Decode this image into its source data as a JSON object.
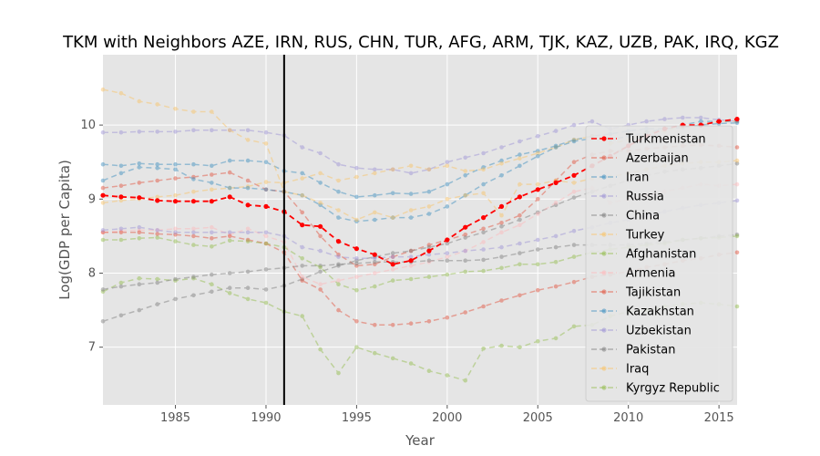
{
  "chart_data": {
    "type": "line",
    "title": "TKM with Neighbors AZE, IRN, RUS, CHN, TUR, AFG, ARM, TJK, KAZ, UZB, PAK, IRQ, KGZ",
    "xlabel": "Year",
    "ylabel": "Log(GDP per Capita)",
    "xlim": [
      1981,
      2016
    ],
    "ylim": [
      6.22,
      10.95
    ],
    "x_ticks": [
      "1985",
      "1990",
      "1995",
      "2000",
      "2005",
      "2010",
      "2015"
    ],
    "y_ticks": [
      "7",
      "8",
      "9",
      "10"
    ],
    "grid": true,
    "legend_position": "lower-right",
    "vline_x": 1991,
    "x": [
      1981,
      1982,
      1983,
      1984,
      1985,
      1986,
      1987,
      1988,
      1989,
      1990,
      1991,
      1992,
      1993,
      1994,
      1995,
      1996,
      1997,
      1998,
      1999,
      2000,
      2001,
      2002,
      2003,
      2004,
      2005,
      2006,
      2007,
      2008,
      2009,
      2010,
      2011,
      2012,
      2013,
      2014,
      2015,
      2016
    ],
    "series": [
      {
        "name": "Turkmenistan",
        "color": "#ff0000",
        "highlight": true,
        "values": [
          9.05,
          9.03,
          9.02,
          8.98,
          8.97,
          8.97,
          8.97,
          9.03,
          8.92,
          8.9,
          8.83,
          8.65,
          8.63,
          8.43,
          8.33,
          8.25,
          8.12,
          8.17,
          8.3,
          8.45,
          8.62,
          8.75,
          8.9,
          9.03,
          9.13,
          9.22,
          9.32,
          9.45,
          9.58,
          9.72,
          9.85,
          9.95,
          10.0,
          10.0,
          10.05,
          10.08
        ]
      },
      {
        "name": "Azerbaijan",
        "color": "#e24a33",
        "values": [
          9.15,
          9.18,
          9.22,
          9.25,
          9.28,
          9.3,
          9.33,
          9.36,
          9.25,
          9.13,
          9.1,
          8.82,
          8.5,
          8.25,
          8.1,
          8.12,
          8.22,
          8.3,
          8.38,
          8.45,
          8.52,
          8.6,
          8.68,
          8.78,
          9.0,
          9.25,
          9.5,
          9.6,
          9.65,
          9.65,
          9.68,
          9.7,
          9.72,
          9.73,
          9.72,
          9.7
        ]
      },
      {
        "name": "Iran",
        "color": "#348abd",
        "values": [
          9.47,
          9.45,
          9.48,
          9.47,
          9.47,
          9.47,
          9.45,
          9.52,
          9.52,
          9.5,
          9.38,
          9.35,
          9.22,
          9.1,
          9.03,
          9.05,
          9.08,
          9.07,
          9.1,
          9.2,
          9.32,
          9.43,
          9.52,
          9.6,
          9.65,
          9.72,
          9.8,
          9.85,
          9.88,
          9.92,
          9.95,
          9.95,
          9.97,
          10.0,
          10.02,
          10.03
        ]
      },
      {
        "name": "Russia",
        "color": "#988ed5",
        "values": [
          9.9,
          9.9,
          9.91,
          9.91,
          9.91,
          9.93,
          9.93,
          9.93,
          9.93,
          9.9,
          9.86,
          9.7,
          9.62,
          9.47,
          9.42,
          9.4,
          9.4,
          9.35,
          9.4,
          9.5,
          9.56,
          9.62,
          9.7,
          9.78,
          9.85,
          9.92,
          10.0,
          10.05,
          9.95,
          10.0,
          10.05,
          10.08,
          10.1,
          10.1,
          10.07,
          10.05
        ]
      },
      {
        "name": "China",
        "color": "#777777",
        "values": [
          7.35,
          7.43,
          7.5,
          7.58,
          7.65,
          7.7,
          7.75,
          7.8,
          7.8,
          7.78,
          7.83,
          7.92,
          8.02,
          8.1,
          8.17,
          8.22,
          8.27,
          8.3,
          8.35,
          8.4,
          8.48,
          8.55,
          8.63,
          8.72,
          8.82,
          8.92,
          9.02,
          9.1,
          9.18,
          9.25,
          9.32,
          9.37,
          9.4,
          9.42,
          9.45,
          9.48
        ]
      },
      {
        "name": "Turkey",
        "color": "#fbc15e",
        "values": [
          8.95,
          8.98,
          9.0,
          9.03,
          9.05,
          9.1,
          9.13,
          9.15,
          9.17,
          9.23,
          9.22,
          9.28,
          9.35,
          9.25,
          9.3,
          9.35,
          9.4,
          9.45,
          9.4,
          9.45,
          9.38,
          9.4,
          9.48,
          9.55,
          9.62,
          9.7,
          9.8,
          9.85,
          9.75,
          9.8,
          9.9,
          9.92,
          9.98,
          10.0,
          10.05,
          10.05
        ]
      },
      {
        "name": "Afghanistan",
        "color": "#8eba42",
        "values": [
          7.75,
          7.87,
          7.93,
          7.92,
          7.9,
          7.93,
          7.85,
          7.73,
          7.65,
          7.6,
          7.48,
          7.42,
          6.97,
          6.65,
          7.0,
          6.92,
          6.85,
          6.78,
          6.68,
          6.62,
          6.55,
          6.98,
          7.02,
          7.0,
          7.08,
          7.12,
          7.28,
          7.3,
          7.42,
          7.48,
          7.5,
          7.55,
          7.58,
          7.6,
          7.58,
          7.55
        ]
      },
      {
        "name": "Armenia",
        "color": "#ffb5b8",
        "values": [
          8.55,
          8.57,
          8.58,
          8.58,
          8.6,
          8.6,
          8.62,
          8.52,
          8.6,
          8.5,
          8.42,
          7.95,
          7.85,
          7.9,
          7.95,
          8.0,
          8.05,
          8.1,
          8.15,
          8.22,
          8.3,
          8.42,
          8.55,
          8.65,
          8.8,
          8.95,
          9.1,
          9.15,
          8.95,
          9.0,
          9.05,
          9.1,
          9.15,
          9.2,
          9.18,
          9.2
        ]
      },
      {
        "name": "Tajikistan",
        "color": "#e24a33",
        "values": [
          8.55,
          8.55,
          8.55,
          8.53,
          8.52,
          8.5,
          8.47,
          8.5,
          8.45,
          8.4,
          8.28,
          7.9,
          7.78,
          7.5,
          7.35,
          7.3,
          7.3,
          7.32,
          7.35,
          7.4,
          7.47,
          7.55,
          7.63,
          7.7,
          7.77,
          7.82,
          7.88,
          7.95,
          7.98,
          8.02,
          8.08,
          8.12,
          8.17,
          8.2,
          8.25,
          8.28
        ]
      },
      {
        "name": "Kazakhstan",
        "color": "#348abd",
        "values": [
          9.25,
          9.35,
          9.43,
          9.42,
          9.4,
          9.27,
          9.22,
          9.15,
          9.15,
          9.13,
          9.1,
          9.05,
          8.92,
          8.75,
          8.7,
          8.72,
          8.75,
          8.75,
          8.8,
          8.9,
          9.05,
          9.2,
          9.32,
          9.45,
          9.58,
          9.7,
          9.78,
          9.82,
          9.8,
          9.85,
          9.9,
          9.95,
          10.0,
          10.05,
          10.05,
          10.05
        ]
      },
      {
        "name": "Uzbekistan",
        "color": "#988ed5",
        "values": [
          8.58,
          8.6,
          8.62,
          8.58,
          8.55,
          8.55,
          8.55,
          8.55,
          8.55,
          8.55,
          8.5,
          8.35,
          8.3,
          8.22,
          8.2,
          8.2,
          8.22,
          8.22,
          8.25,
          8.27,
          8.3,
          8.32,
          8.35,
          8.4,
          8.45,
          8.5,
          8.57,
          8.62,
          8.68,
          8.72,
          8.78,
          8.83,
          8.88,
          8.92,
          8.95,
          8.98
        ]
      },
      {
        "name": "Pakistan",
        "color": "#777777",
        "values": [
          7.78,
          7.82,
          7.85,
          7.87,
          7.92,
          7.95,
          7.98,
          8.0,
          8.02,
          8.05,
          8.07,
          8.1,
          8.1,
          8.12,
          8.13,
          8.15,
          8.15,
          8.15,
          8.17,
          8.17,
          8.17,
          8.18,
          8.22,
          8.27,
          8.32,
          8.35,
          8.38,
          8.38,
          8.38,
          8.38,
          8.4,
          8.42,
          8.45,
          8.47,
          8.5,
          8.52
        ]
      },
      {
        "name": "Iraq",
        "color": "#fbc15e",
        "values": [
          10.48,
          10.43,
          10.32,
          10.28,
          10.22,
          10.18,
          10.18,
          9.93,
          9.8,
          9.75,
          9.1,
          9.05,
          8.95,
          8.85,
          8.72,
          8.82,
          8.75,
          8.85,
          8.9,
          9.0,
          9.05,
          9.08,
          8.78,
          9.2,
          9.2,
          9.25,
          9.22,
          9.28,
          9.3,
          9.35,
          9.4,
          9.45,
          9.48,
          9.5,
          9.5,
          9.52
        ]
      },
      {
        "name": "Kyrgyz Republic",
        "color": "#8eba42",
        "values": [
          8.45,
          8.45,
          8.47,
          8.48,
          8.43,
          8.38,
          8.36,
          8.44,
          8.43,
          8.4,
          8.35,
          8.2,
          8.08,
          7.85,
          7.77,
          7.82,
          7.9,
          7.92,
          7.95,
          7.98,
          8.02,
          8.03,
          8.07,
          8.12,
          8.12,
          8.15,
          8.22,
          8.28,
          8.32,
          8.35,
          8.38,
          8.4,
          8.45,
          8.47,
          8.48,
          8.5
        ]
      }
    ]
  }
}
